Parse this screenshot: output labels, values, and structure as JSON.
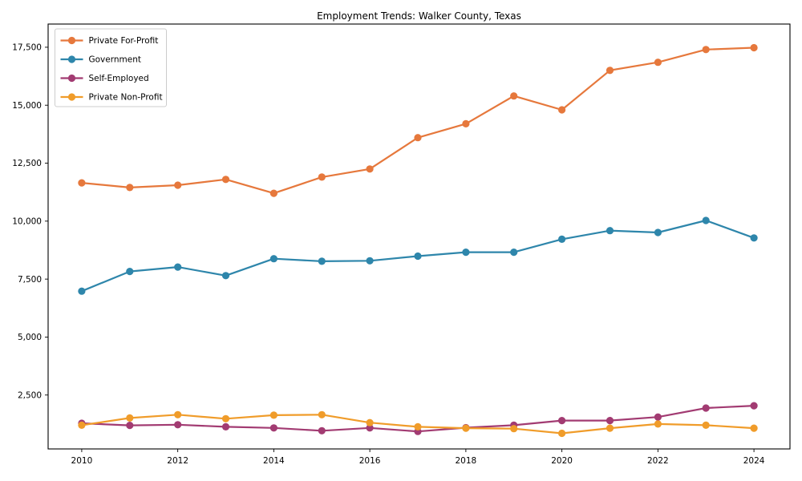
{
  "chart_data": {
    "type": "line",
    "title": "Employment Trends: Walker County, Texas",
    "x": [
      2010,
      2011,
      2012,
      2013,
      2014,
      2015,
      2016,
      2017,
      2018,
      2019,
      2020,
      2021,
      2022,
      2023,
      2024
    ],
    "x_tick_labels": [
      "2010",
      "2012",
      "2014",
      "2016",
      "2018",
      "2020",
      "2022",
      "2024"
    ],
    "x_tick_values": [
      2010,
      2012,
      2014,
      2016,
      2018,
      2020,
      2022,
      2024
    ],
    "y_tick_labels": [
      "2,500",
      "5,000",
      "7,500",
      "10,000",
      "12,500",
      "15,000",
      "17,500"
    ],
    "y_tick_values": [
      2500,
      5000,
      7500,
      10000,
      12500,
      15000,
      17500
    ],
    "xlim": [
      2009.3,
      2024.75
    ],
    "ylim": [
      175,
      18500
    ],
    "grid": false,
    "legend_position": "upper-left",
    "series": [
      {
        "name": "Private For-Profit",
        "color": "#e6783c",
        "values": [
          11650,
          11450,
          11550,
          11800,
          11200,
          11900,
          12250,
          13600,
          14200,
          15400,
          14800,
          16500,
          16850,
          17400,
          17480
        ]
      },
      {
        "name": "Government",
        "color": "#2e86ab",
        "values": [
          6980,
          7830,
          8020,
          7650,
          8380,
          8270,
          8290,
          8490,
          8660,
          8660,
          9220,
          9590,
          9510,
          10030,
          9275
        ]
      },
      {
        "name": "Self-Employed",
        "color": "#a23b72",
        "values": [
          1280,
          1190,
          1220,
          1130,
          1080,
          960,
          1080,
          930,
          1090,
          1200,
          1400,
          1400,
          1550,
          1940,
          2040
        ]
      },
      {
        "name": "Private Non-Profit",
        "color": "#f09c2a",
        "values": [
          1200,
          1510,
          1650,
          1480,
          1630,
          1650,
          1310,
          1130,
          1070,
          1050,
          850,
          1070,
          1250,
          1200,
          1070
        ]
      }
    ]
  }
}
